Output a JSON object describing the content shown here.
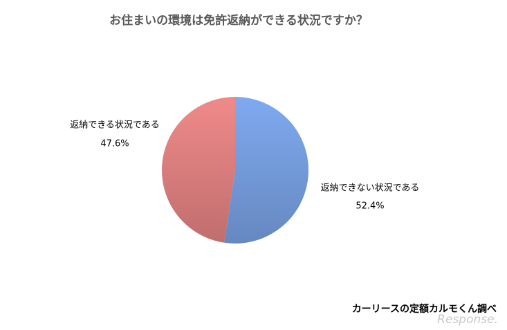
{
  "chart_data": {
    "type": "pie",
    "title": "お住まいの環境は免許返納ができる状況ですか？",
    "categories": [
      "返納できない状況である",
      "返納できる状況である"
    ],
    "values": [
      52.4,
      47.6
    ],
    "value_labels": [
      "52.4%",
      "47.6%"
    ],
    "colors": [
      "#7faaf0",
      "#f08a8a"
    ],
    "source": "カーリースの定額カルモくん調べ",
    "watermark": "Response."
  }
}
